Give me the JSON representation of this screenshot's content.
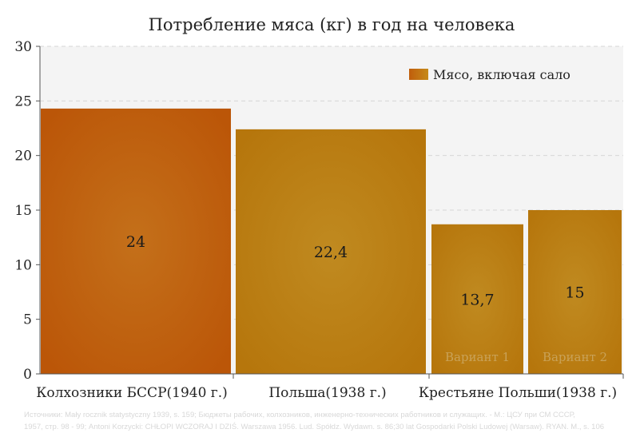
{
  "chart_data": {
    "type": "bar",
    "title": "Потребление мяса (кг) в год на человека",
    "xlabel": "",
    "ylabel": "",
    "ylim": [
      0,
      30
    ],
    "yticks": [
      "0",
      "5",
      "10",
      "15",
      "20",
      "25",
      "30"
    ],
    "grid": true,
    "legend": {
      "position": "top-right",
      "entries": [
        "Мясо, включая сало"
      ]
    },
    "categories": [
      "Колхозники БССР(1940 г.)",
      "Польша(1938 г.)",
      "Крестьяне Польши(1938 г.)"
    ],
    "bars": [
      {
        "category": "Колхозники БССР(1940 г.)",
        "value": 24.3,
        "label": "24",
        "color": "#c05e0c"
      },
      {
        "category": "Польша(1938 г.)",
        "value": 22.4,
        "label": "22,4",
        "color": "#b8780e"
      },
      {
        "category": "Крестьяне Польши(1938 г.)",
        "value": 13.7,
        "label": "13,7",
        "sublabel": "Вариант 1",
        "color": "#b8780e"
      },
      {
        "category": "Крестьяне Польши(1938 г.)",
        "value": 15,
        "label": "15",
        "sublabel": "Вариант 2",
        "color": "#b8780e"
      }
    ],
    "colors": {
      "highlight": "#c05e0c",
      "default": "#b8780e",
      "plot_bg": "#f4f4f4",
      "grid": "#d6d6d6"
    }
  },
  "source_lines": [
    "Источники: Mały rocznik statystyczny 1939, s. 159; Бюджеты рабочих, колхозников, инженерно-технических работников и служащих. - М.: ЦСУ при СМ СССР,",
    "1957, стр. 98 - 99; Antoni Korzycki: CHŁOPI WCZORAJ I DZIŚ. Warszawa 1956. Lud. Spółdz. Wydawn. s. 86;30 lat Gospodarki Polski Ludowej (Warsaw). RYAN. M., s. 106"
  ]
}
